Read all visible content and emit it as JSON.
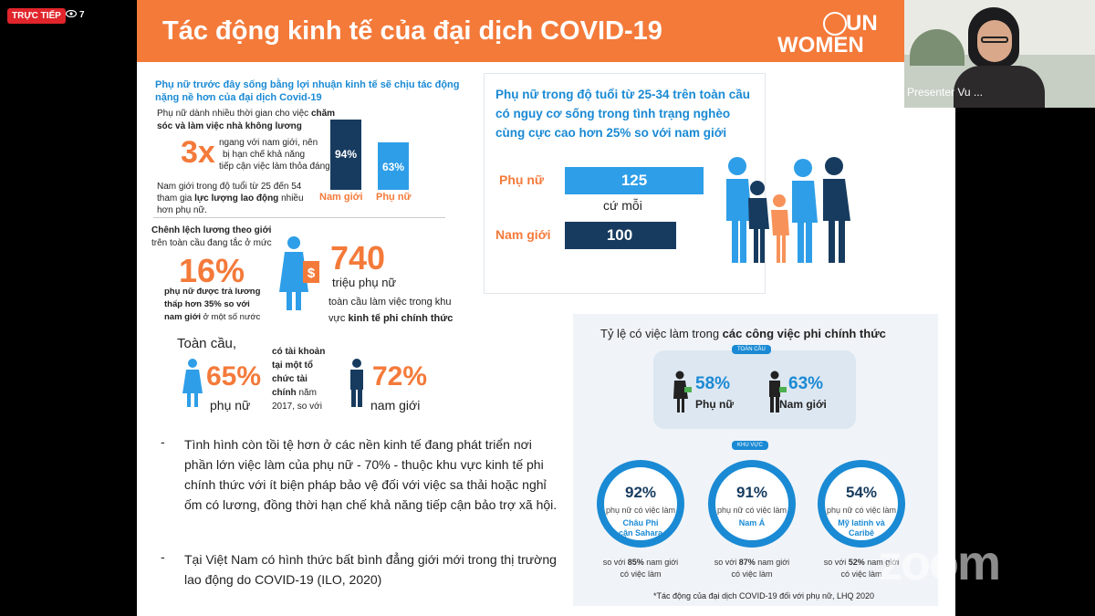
{
  "zoom": {
    "live_badge": "TRỰC TIẾP",
    "viewer_count": "7",
    "presenter_name": "Presenter Vu ...",
    "watermark": "zoom"
  },
  "slide": {
    "title": "Tác động kinh tế của đại dịch COVID-19",
    "logo": {
      "line1": "UN",
      "line2": "WOMEN"
    },
    "left": {
      "headline": "Phụ nữ trước đây sống bằng lợi nhuận kinh tế sẽ chịu tác động nặng nề hơn của đại dịch Covid-19",
      "care_line1": "Phụ nữ dành nhiều thời gian cho việc",
      "care_line1_bold": "chăm",
      "care_line2_bold": "sóc và làm việc nhà không  lương",
      "multiplier": "3x",
      "care_line3": "ngang với nam giới, nên",
      "care_line4": "bị hạn chế khả năng",
      "care_line5": "tiếp cận việc làm thỏa đáng",
      "labour_line1": "Nam giới trong độ tuổi từ 25 đến 54",
      "labour_line2a": "tham gia",
      "labour_line2b": "lực lượng lao động",
      "labour_line2c": "nhiều",
      "labour_line3": "hơn phụ nữ.",
      "bar_men_value": "94%",
      "bar_women_value": "63%",
      "bar_men_label": "Nam giới",
      "bar_women_label": "Phụ nữ",
      "bar_men_pct": 94,
      "bar_women_pct": 63,
      "wage_line1": "Chênh lệch lương theo giới",
      "wage_line2": "trên toàn cầu đang tắc ở mức",
      "wage_pct": "16%",
      "wage_line3": "phụ nữ được trả lương",
      "wage_line4": "thấp hơn 35% so với",
      "wage_line5a": "nam giới",
      "wage_line5b": "ở một số nước",
      "informal_number": "740",
      "informal_line1": "triệu phụ nữ",
      "informal_line2": "toàn cầu làm việc trong khu",
      "informal_line3a": "vực",
      "informal_line3b": "kinh tế phi chính thức",
      "global_label": "Toàn cầu,",
      "women_account_pct": "65%",
      "women_label": "phụ nữ",
      "account_line1": "có tài khoản",
      "account_line2": "tại một tổ",
      "account_line3": "chức tài",
      "account_line4a": "chính",
      "account_line4b": "năm",
      "account_line5": "2017, so với",
      "men_account_pct": "72%",
      "men_label": "nam giới",
      "bullet1": "Tình hình còn tồi tệ hơn ở các nền kinh tế đang phát triển nơi phần lớn việc làm của phụ nữ - 70% - thuộc khu vực kinh tế phi chính thức với ít biện pháp bảo vệ đối với việc sa thải hoặc nghỉ ốm có lương, đồng thời hạn chế khả năng tiếp cận bảo trợ xã hội.",
      "bullet2": "Tại Việt Nam có hình thức bất bình đẳng giới mới trong thị trường lao động do COVID-19 (ILO, 2020)"
    },
    "poverty": {
      "title": "Phụ nữ trong độ tuổi từ 25-34 trên toàn cầu có nguy cơ sống trong tình trạng nghèo cùng cực cao hơn 25% so với nam giới",
      "women_label": "Phụ nữ",
      "women_value": "125",
      "per_label": "cứ mỗi",
      "men_label": "Nam giới",
      "men_value": "100",
      "women_num": 125,
      "men_num": 100
    },
    "informal_jobs": {
      "title_a": "Tỷ lệ có việc làm trong",
      "title_b": "các công việc phi chính thức",
      "global_pill": "TOÀN CẦU",
      "global_women_pct": "58%",
      "global_women_label": "Phụ nữ",
      "global_men_pct": "63%",
      "global_men_label": "Nam giới",
      "region_pill": "KHU VỰC",
      "regions": [
        {
          "pct": "92%",
          "sub": "phụ nữ có việc làm",
          "region_line1": "Châu Phi",
          "region_line2": "cận Sahara",
          "cmp_a": "so với",
          "cmp_b": "85%",
          "cmp_c": "nam giới",
          "cmp_line2": "có việc làm"
        },
        {
          "pct": "91%",
          "sub": "phụ nữ có việc làm",
          "region_line1": "Nam Á",
          "region_line2": "",
          "cmp_a": "so với",
          "cmp_b": "87%",
          "cmp_c": "nam giới",
          "cmp_line2": "có việc làm"
        },
        {
          "pct": "54%",
          "sub": "phụ nữ có việc làm",
          "region_line1": "Mỹ latinh và",
          "region_line2": "Caribê",
          "cmp_a": "so với",
          "cmp_b": "52%",
          "cmp_c": "nam giới",
          "cmp_line2": "có việc làm"
        }
      ],
      "footnote": "*Tác động của đại dịch COVID-19 đối với phụ nữ, LHQ 2020"
    }
  }
}
